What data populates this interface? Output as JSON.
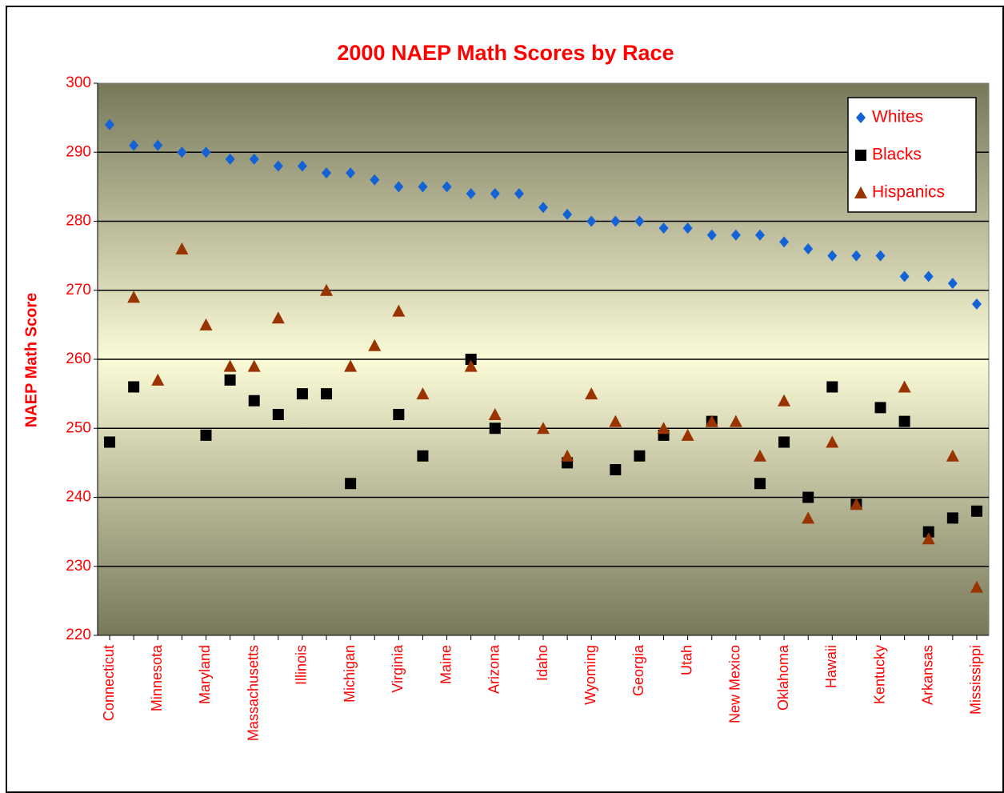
{
  "chart_data": {
    "type": "scatter",
    "title": "2000 NAEP Math Scores by Race",
    "y_label": "NAEP Math Score",
    "categories": [
      "Connecticut",
      null,
      "Minnesota",
      null,
      "Maryland",
      null,
      "Massachusetts",
      null,
      "Illinois",
      null,
      "Michigan",
      null,
      "Virginia",
      null,
      "Maine",
      null,
      "Arizona",
      null,
      "Idaho",
      null,
      "Wyoming",
      null,
      "Georgia",
      null,
      "Utah",
      null,
      "New Mexico",
      null,
      "Oklahoma",
      null,
      "Hawaii",
      null,
      "Kentucky",
      null,
      "Arkansas",
      null,
      "Mississippi"
    ],
    "series": [
      {
        "name": "Whites",
        "color": "#1463d6",
        "marker": "diamond",
        "values": [
          294,
          291,
          291,
          290,
          290,
          289,
          289,
          288,
          288,
          287,
          287,
          286,
          285,
          285,
          285,
          284,
          284,
          284,
          282,
          281,
          280,
          280,
          280,
          279,
          279,
          278,
          278,
          278,
          277,
          276,
          275,
          275,
          275,
          272,
          272,
          271,
          268
        ]
      },
      {
        "name": "Blacks",
        "color": "#000000",
        "marker": "square",
        "values": [
          248,
          256,
          null,
          null,
          249,
          257,
          254,
          252,
          255,
          255,
          242,
          null,
          252,
          246,
          null,
          260,
          250,
          null,
          null,
          245,
          null,
          244,
          246,
          249,
          null,
          251,
          null,
          242,
          248,
          240,
          256,
          239,
          253,
          251,
          235,
          237,
          238
        ]
      },
      {
        "name": "Hispanics",
        "color": "#993300",
        "marker": "triangle",
        "values": [
          null,
          269,
          257,
          276,
          265,
          259,
          259,
          266,
          null,
          270,
          259,
          262,
          267,
          255,
          null,
          259,
          252,
          null,
          250,
          246,
          255,
          251,
          null,
          250,
          249,
          251,
          251,
          246,
          254,
          237,
          248,
          239,
          null,
          256,
          234,
          246,
          227
        ]
      }
    ],
    "ylim": [
      220,
      300
    ],
    "yticks": [
      220,
      230,
      240,
      250,
      260,
      270,
      280,
      290,
      300
    ],
    "grid": true,
    "legend": "top-right"
  }
}
